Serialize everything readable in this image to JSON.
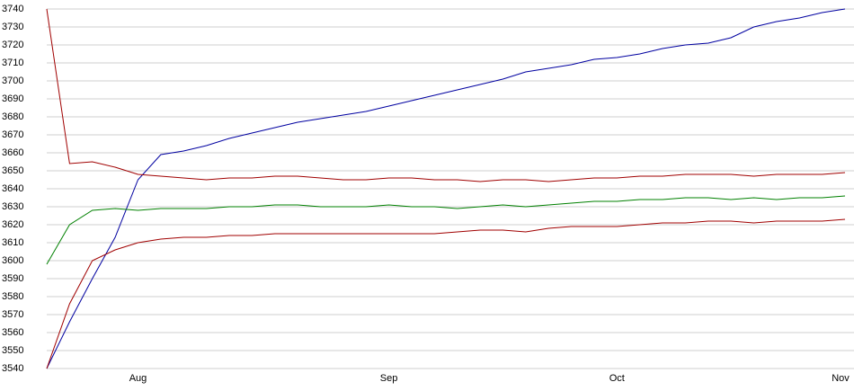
{
  "chart_data": {
    "type": "line",
    "categories": [
      null,
      null,
      null,
      null,
      "Aug",
      null,
      null,
      null,
      null,
      null,
      null,
      null,
      null,
      null,
      null,
      "Sep",
      null,
      null,
      null,
      null,
      null,
      null,
      null,
      null,
      null,
      "Oct",
      null,
      null,
      null,
      null,
      null,
      null,
      null,
      null,
      null,
      "Nov"
    ],
    "series": [
      {
        "color": "#0000a0",
        "values": [
          3540,
          3566,
          3590,
          3613,
          3645,
          3659,
          3661,
          3664,
          3668,
          3671,
          3674,
          3677,
          3679,
          3681,
          3683,
          3686,
          3689,
          3692,
          3695,
          3698,
          3701,
          3705,
          3707,
          3709,
          3712,
          3713,
          3715,
          3718,
          3720,
          3721,
          3724,
          3730,
          3733,
          3735,
          3738,
          3740
        ]
      },
      {
        "color": "#a00000",
        "values": [
          3740,
          3654,
          3655,
          3652,
          3648,
          3647,
          3646,
          3645,
          3646,
          3646,
          3647,
          3647,
          3646,
          3645,
          3645,
          3646,
          3646,
          3645,
          3645,
          3644,
          3645,
          3645,
          3644,
          3645,
          3646,
          3646,
          3647,
          3647,
          3648,
          3648,
          3648,
          3647,
          3648,
          3648,
          3648,
          3649
        ]
      },
      {
        "color": "#008000",
        "values": [
          3598,
          3620,
          3628,
          3629,
          3628,
          3629,
          3629,
          3629,
          3630,
          3630,
          3631,
          3631,
          3630,
          3630,
          3630,
          3631,
          3630,
          3630,
          3629,
          3630,
          3631,
          3630,
          3631,
          3632,
          3633,
          3633,
          3634,
          3634,
          3635,
          3635,
          3634,
          3635,
          3634,
          3635,
          3635,
          3636
        ]
      },
      {
        "color": "#a00000",
        "values": [
          3540,
          3576,
          3600,
          3606,
          3610,
          3612,
          3613,
          3613,
          3614,
          3614,
          3615,
          3615,
          3615,
          3615,
          3615,
          3615,
          3615,
          3615,
          3616,
          3617,
          3617,
          3616,
          3618,
          3619,
          3619,
          3619,
          3620,
          3621,
          3621,
          3622,
          3622,
          3621,
          3622,
          3622,
          3622,
          3623
        ]
      }
    ],
    "ylim": [
      3540,
      3740
    ],
    "yticks": [
      3540,
      3550,
      3560,
      3570,
      3580,
      3590,
      3600,
      3610,
      3620,
      3630,
      3640,
      3650,
      3660,
      3670,
      3680,
      3690,
      3700,
      3710,
      3720,
      3730,
      3740
    ],
    "grid": true
  }
}
